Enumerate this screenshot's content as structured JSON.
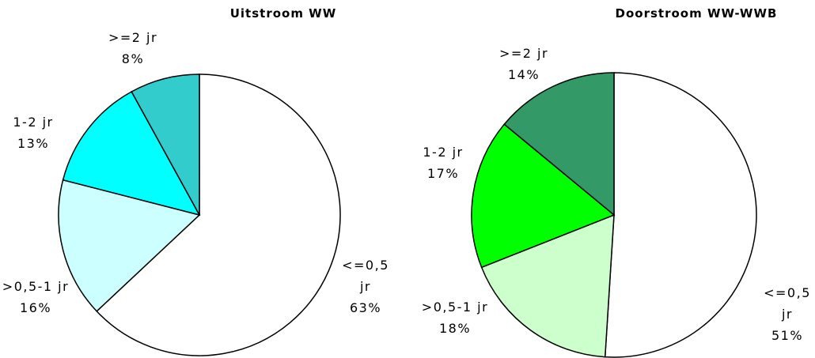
{
  "chart_data": [
    {
      "type": "pie",
      "title": "Uitstroom WW",
      "categories": [
        "<=0,5 jr",
        ">0,5-1 jr",
        "1-2 jr",
        ">=2 jr"
      ],
      "values": [
        63,
        16,
        13,
        8
      ],
      "value_labels": [
        "63%",
        "16%",
        "13%",
        "8%"
      ],
      "colors": [
        "#ffffff",
        "#ccffff",
        "#00ffff",
        "#33cccc"
      ]
    },
    {
      "type": "pie",
      "title": "Doorstroom WW-WWB",
      "categories": [
        "<=0,5 jr",
        ">0,5-1 jr",
        "1-2 jr",
        ">=2 jr"
      ],
      "values": [
        51,
        18,
        17,
        14
      ],
      "value_labels": [
        "51%",
        "18%",
        "17%",
        "14%"
      ],
      "colors": [
        "#ffffff",
        "#ccffcc",
        "#00ff00",
        "#339966"
      ]
    }
  ]
}
